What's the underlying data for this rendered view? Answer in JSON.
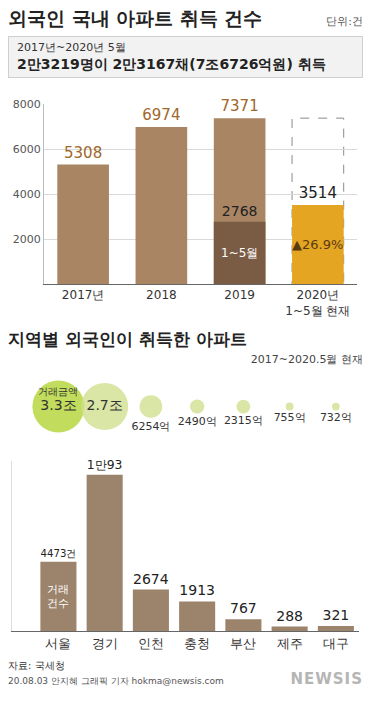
{
  "header": {
    "unit": "단위:건",
    "period": "2017년~2020년 5월",
    "summary": "2만3219명이 2만3167채(7조6726억원) 취득"
  },
  "chart_data": [
    {
      "type": "bar",
      "title": "외국인 국내 아파트 취득 건수",
      "categories": [
        "2017년",
        "2018",
        "2019",
        "2020년 1~5월 현재"
      ],
      "series": [
        {
          "values": [
            5308,
            6974,
            7371,
            3514
          ],
          "colors": [
            "#a98564",
            "#a98564",
            "#a98564",
            "#e4a522"
          ]
        },
        {
          "name": "1~5월",
          "values": [
            null,
            null,
            2768,
            null
          ],
          "color": "#7a5b43"
        }
      ],
      "annotations": [
        {
          "text": "▲26.9%",
          "category": "2020년 1~5월 현재"
        }
      ],
      "ylim": [
        0,
        8000
      ],
      "yticks": [
        2000,
        4000,
        6000,
        8000
      ],
      "grid": true,
      "data_labels": true
    },
    {
      "type": "bubble",
      "title": "지역별 외국인이 취득한 아파트",
      "subtitle": "2017~2020.5월 현재",
      "name": "거래금액",
      "categories": [
        "서울",
        "경기",
        "인천",
        "충청",
        "부산",
        "제주",
        "대구"
      ],
      "values": [
        33000,
        27000,
        6254,
        2490,
        2315,
        755,
        732
      ],
      "value_labels": [
        "3.3조",
        "2.7조",
        "6254억",
        "2490억",
        "2315억",
        "755억",
        "732억"
      ],
      "colors": [
        "#b3d335",
        "#cfe08f",
        "#cfe08f",
        "#cfe08f",
        "#cfe08f",
        "#cfe08f",
        "#cfe08f"
      ],
      "data_labels": true,
      "tick_labels": false
    },
    {
      "type": "bar",
      "name": "거래건수",
      "categories": [
        "서울",
        "경기",
        "인천",
        "충청",
        "부산",
        "제주",
        "대구"
      ],
      "values": [
        4473,
        10093,
        2674,
        1913,
        767,
        288,
        321
      ],
      "value_labels": [
        "4473건",
        "1만93",
        "2674",
        "1913",
        "767",
        "288",
        "321"
      ],
      "color": "#9c846c",
      "ylim": [
        0,
        11000
      ],
      "tick_labels": "x",
      "data_labels": true
    }
  ],
  "footer": {
    "source": "자료: 국세청",
    "credit": "20.08.03 안지혜 그래픽 기자 hokma@newsis.com",
    "watermark": "NEWSIS"
  }
}
